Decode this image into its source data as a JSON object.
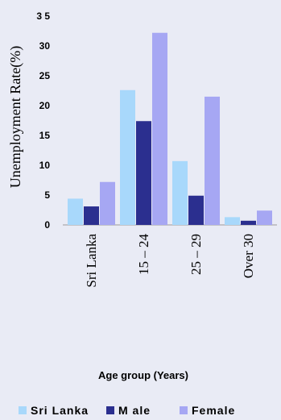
{
  "chart_data": {
    "type": "bar",
    "categories": [
      "Sri Lanka",
      "15 – 24",
      "25 – 29",
      "Over 30"
    ],
    "series": [
      {
        "name": "Sri Lanka",
        "color": "#a8d8fb",
        "values": [
          4.4,
          22.6,
          10.7,
          1.3
        ]
      },
      {
        "name": "M ale",
        "color": "#2b2f8f",
        "values": [
          3.1,
          17.4,
          4.9,
          0.7
        ]
      },
      {
        "name": "Female",
        "color": "#a6a7f3",
        "values": [
          7.2,
          32.2,
          21.5,
          2.4
        ]
      }
    ],
    "yticks": [
      "0",
      "5",
      "10",
      "15",
      "20",
      "25",
      "30",
      "3 5"
    ],
    "ylim": [
      0,
      35
    ],
    "ylabel": "Unemployment Rate(%)",
    "xlabel": "Age group (Years)",
    "legend_position": "bottom"
  }
}
